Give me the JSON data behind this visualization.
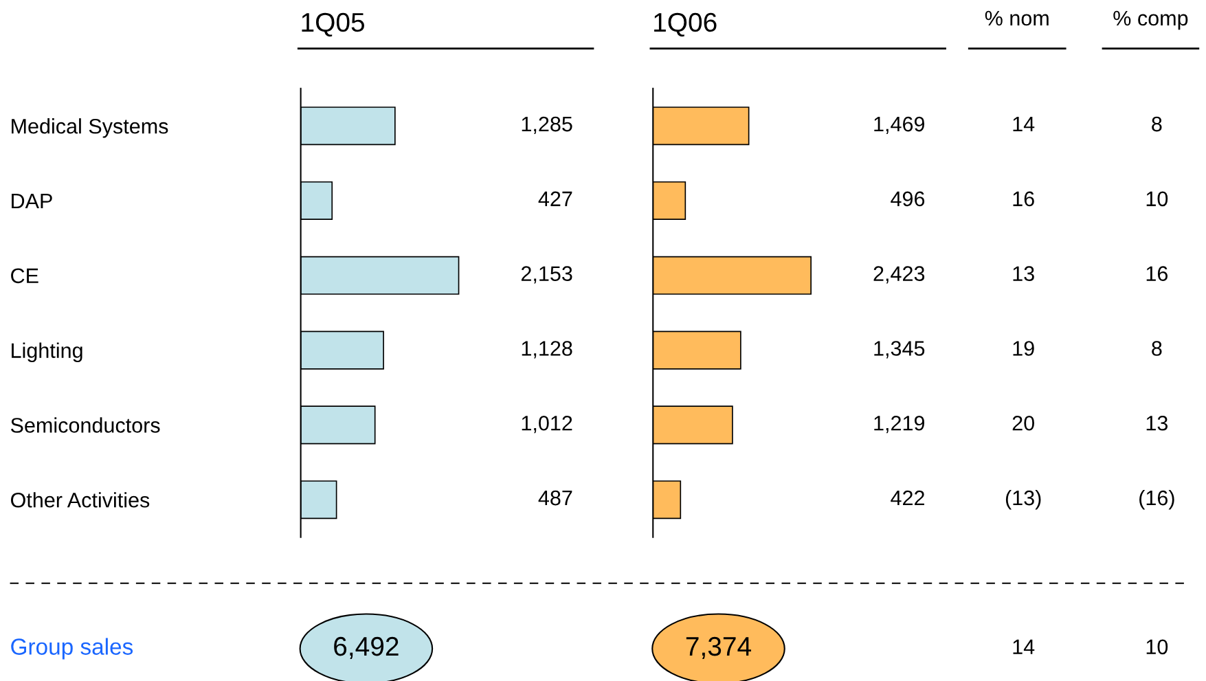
{
  "chart_data": [
    {
      "type": "bar",
      "orientation": "horizontal",
      "title": "1Q05",
      "categories": [
        "Medical Systems",
        "DAP",
        "CE",
        "Lighting",
        "Semiconductors",
        "Other Activities"
      ],
      "values": [
        1285,
        427,
        2153,
        1128,
        1012,
        487
      ],
      "value_labels": [
        "1,285",
        "427",
        "2,153",
        "1,128",
        "1,012",
        "487"
      ],
      "color": "#c1e3ea",
      "annotations": [
        "6,492"
      ]
    },
    {
      "type": "bar",
      "orientation": "horizontal",
      "title": "1Q06",
      "categories": [
        null,
        null,
        null,
        null,
        null,
        null
      ],
      "values": [
        1469,
        496,
        2423,
        1345,
        1219,
        422
      ],
      "value_labels": [
        "1,469",
        "496",
        "2,423",
        "1,345",
        "1,219",
        "422"
      ],
      "color": "#ffbb5c",
      "annotations": [
        "7,374"
      ]
    },
    {
      "type": "other",
      "title": "% nom",
      "categories": [
        null,
        null,
        null,
        null,
        null,
        null,
        null
      ],
      "values": [
        14,
        16,
        13,
        19,
        20,
        -13,
        14
      ],
      "value_labels": [
        "14",
        "16",
        "13",
        "19",
        "20",
        "(13)",
        "14"
      ]
    },
    {
      "type": "other",
      "title": "% comp",
      "categories": [
        null,
        null,
        null,
        null,
        null,
        null,
        null
      ],
      "values": [
        8,
        10,
        16,
        8,
        13,
        -16,
        10
      ],
      "value_labels": [
        "8",
        "10",
        "16",
        "8",
        "13",
        "(16)",
        "10"
      ]
    },
    {
      "type": "other",
      "annotations": [
        "Group sales"
      ]
    }
  ]
}
